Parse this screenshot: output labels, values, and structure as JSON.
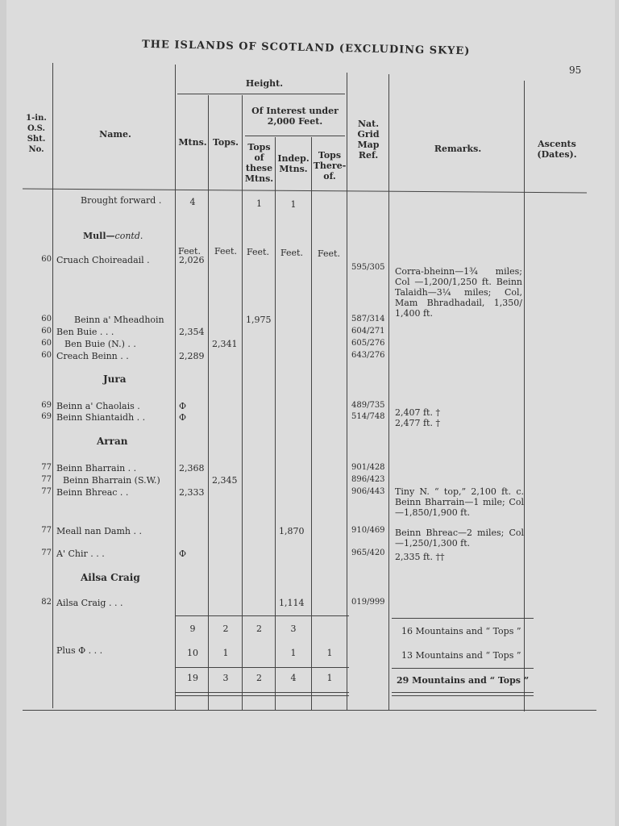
{
  "page": {
    "running_title": "THE ISLANDS OF SCOTLAND (EXCLUDING SKYE)",
    "page_number": "95"
  },
  "headers": {
    "sheet": "1-in. O.S. Sht. No.",
    "name": "Name.",
    "height": "Height.",
    "of_interest": "Of Interest under 2,000 Feet.",
    "mtns": "Mtns.",
    "tops": "Tops.",
    "tops_of_these": "Tops of these Mtns.",
    "indep": "Indep. Mtns.",
    "tops_thereof": "Tops There-of.",
    "grid": "Nat. Grid Map Ref.",
    "remarks": "Remarks.",
    "ascents": "Ascents (Dates)."
  },
  "brought_forward": {
    "label": "Brought forward .",
    "mtns": "4",
    "tops_of_these": "1",
    "indep": "1"
  },
  "units": "Feet.",
  "sections": {
    "mull": "Mull—",
    "mull_contd": "contd.",
    "jura": "Jura",
    "arran": "Arran",
    "ailsa": "Ailsa Craig"
  },
  "rows": [
    {
      "sht": "60",
      "name": "Cruach Choireadail .",
      "mtns": "2,026",
      "grid": "595/305",
      "remarks": "Corra-bheinn—1¾ miles; Col —1,200/1,250 ft. Beinn Talaidh—3¼ miles; Col, Mam Bhradhadail, 1,350/ 1,400 ft."
    },
    {
      "sht": "60",
      "name": "Beinn a' Mheadhoin",
      "tops_of_these": "1,975",
      "grid": "587/314"
    },
    {
      "sht": "60",
      "name": "Ben Buie . . .",
      "mtns": "2,354",
      "grid": "604/271"
    },
    {
      "sht": "60",
      "name": "Ben Buie (N.) . .",
      "tops": "2,341",
      "grid": "605/276"
    },
    {
      "sht": "60",
      "name": "Creach Beinn . .",
      "mtns": "2,289",
      "grid": "643/276"
    },
    {
      "sht": "69",
      "name": "Beinn a' Chaolais .",
      "mtns": "Φ",
      "grid": "489/735",
      "remarks": "2,407 ft. †"
    },
    {
      "sht": "69",
      "name": "Beinn Shiantaidh . .",
      "mtns": "Φ",
      "grid": "514/748",
      "remarks": "2,477 ft. †"
    },
    {
      "sht": "77",
      "name": "Beinn Bharrain . .",
      "mtns": "2,368",
      "grid": "901/428"
    },
    {
      "sht": "77",
      "name": "Beinn Bharrain (S.W.)",
      "tops": "2,345",
      "grid": "896/423"
    },
    {
      "sht": "77",
      "name": "Beinn Bhreac . .",
      "mtns": "2,333",
      "grid": "906/443",
      "remarks": "Tiny N. “ top,” 2,100 ft. c. Beinn Bharrain—1 mile; Col—1,850/1,900 ft."
    },
    {
      "sht": "77",
      "name": "Meall nan Damh . .",
      "indep": "1,870",
      "grid": "910/469",
      "remarks": "Beinn Bhreac—2 miles; Col —1,250/1,300 ft."
    },
    {
      "sht": "77",
      "name": "A' Chir . . .",
      "mtns": "Φ",
      "grid": "965/420",
      "remarks": "2,335 ft. ††"
    },
    {
      "sht": "82",
      "name": "Ailsa Craig . . .",
      "indep": "1,114",
      "grid": "019/999"
    }
  ],
  "totals": [
    {
      "label": "",
      "mtns": "9",
      "tops": "2",
      "tops_of_these": "2",
      "indep": "3",
      "tops_thereof": "",
      "remarks": "16 Mountains and “ Tops ”"
    },
    {
      "label": "Plus Φ . . .",
      "mtns": "10",
      "tops": "1",
      "tops_of_these": "",
      "indep": "1",
      "tops_thereof": "1",
      "remarks": "13 Mountains and “ Tops ”"
    },
    {
      "label": "",
      "mtns": "19",
      "tops": "3",
      "tops_of_these": "2",
      "indep": "4",
      "tops_thereof": "1",
      "remarks": "29 Mountains and “ Tops ”"
    }
  ]
}
